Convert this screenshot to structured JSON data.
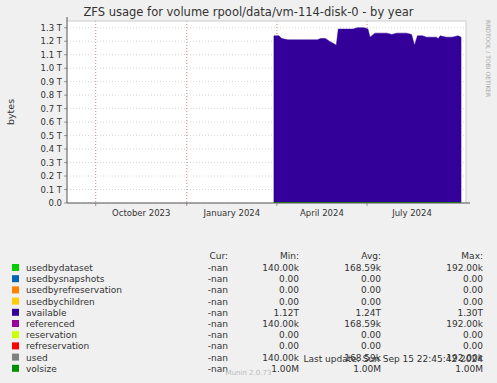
{
  "chart_data": {
    "type": "area",
    "title": "ZFS usage for volume rpool/data/vm-114-disk-0 - by year",
    "ylabel": "bytes",
    "watermark": "RRDTOOL / TOBI OETIKER",
    "footer": "Munin 2.0.73",
    "last_update": "Last update: Sun Sep 15 22:45:42 2024",
    "grid": true,
    "xlim": [
      19602,
      20005
    ],
    "ylim": [
      0,
      1350000000000
    ],
    "xticks": [
      {
        "value": 19631,
        "label": "October 2023"
      },
      {
        "value": 19723,
        "label": "January 2024"
      },
      {
        "value": 19814,
        "label": "April 2024"
      },
      {
        "value": 19905,
        "label": "July 2024"
      }
    ],
    "yticks": [
      {
        "value": 0,
        "label": "0.0"
      },
      {
        "value": 100000000000,
        "label": "0.1 T"
      },
      {
        "value": 200000000000,
        "label": "0.2 T"
      },
      {
        "value": 300000000000,
        "label": "0.3 T"
      },
      {
        "value": 400000000000,
        "label": "0.4 T"
      },
      {
        "value": 500000000000,
        "label": "0.5 T"
      },
      {
        "value": 600000000000,
        "label": "0.6 T"
      },
      {
        "value": 700000000000,
        "label": "0.7 T"
      },
      {
        "value": 800000000000,
        "label": "0.8 T"
      },
      {
        "value": 900000000000,
        "label": "0.9 T"
      },
      {
        "value": 1000000000000,
        "label": "1.0 T"
      },
      {
        "value": 1100000000000,
        "label": "1.1 T"
      },
      {
        "value": 1200000000000,
        "label": "1.2 T"
      },
      {
        "value": 1300000000000,
        "label": "1.3 T"
      }
    ],
    "x": [
      19811,
      19816,
      19819,
      19825,
      19835,
      19845,
      19855,
      19858,
      19863,
      19867,
      19872,
      19874,
      19876,
      19885,
      19891,
      19895,
      19902,
      19906,
      19908,
      19913,
      19925,
      19930,
      19935,
      19945,
      19950,
      19953,
      19956,
      19961,
      19965,
      19975,
      19977,
      19979,
      19985,
      19991,
      19997,
      20000
    ],
    "series": [
      {
        "name": "available",
        "color": "#330099",
        "type": "area",
        "values": [
          1240000000000,
          1240000000000,
          1220000000000,
          1210000000000,
          1210000000000,
          1210000000000,
          1210000000000,
          1220000000000,
          1220000000000,
          1200000000000,
          1180000000000,
          1170000000000,
          1290000000000,
          1290000000000,
          1290000000000,
          1300000000000,
          1300000000000,
          1290000000000,
          1230000000000,
          1260000000000,
          1260000000000,
          1250000000000,
          1260000000000,
          1260000000000,
          1250000000000,
          1170000000000,
          1240000000000,
          1240000000000,
          1230000000000,
          1230000000000,
          1220000000000,
          1240000000000,
          1230000000000,
          1230000000000,
          1240000000000,
          1230000000000
        ]
      },
      {
        "name": "volsize",
        "color": "#008F00",
        "type": "line",
        "values": [
          1000000,
          1000000,
          1000000,
          1000000,
          1000000,
          1000000,
          1000000,
          1000000,
          1000000,
          1000000,
          1000000,
          1000000,
          1000000,
          1000000,
          1000000,
          1000000,
          1000000,
          1000000,
          1000000,
          1000000,
          1000000,
          1000000,
          1000000,
          1000000,
          1000000,
          1000000,
          1000000,
          1000000,
          1000000,
          1000000,
          1000000,
          1000000,
          1000000,
          1000000,
          1000000,
          1000000
        ]
      }
    ],
    "legend_table": {
      "header": [
        "Cur:",
        "Min:",
        "Avg:",
        "Max:"
      ],
      "rows": [
        {
          "name": "usedbydataset",
          "color": "#00CC00",
          "cur": "-nan",
          "min": "140.00k",
          "avg": "168.59k",
          "max": "192.00k"
        },
        {
          "name": "usedbysnapshots",
          "color": "#0066B3",
          "cur": "-nan",
          "min": "0.00",
          "avg": "0.00",
          "max": "0.00"
        },
        {
          "name": "usedbyrefreservation",
          "color": "#FF8000",
          "cur": "-nan",
          "min": "0.00",
          "avg": "0.00",
          "max": "0.00"
        },
        {
          "name": "usedbychildren",
          "color": "#FFCC00",
          "cur": "-nan",
          "min": "0.00",
          "avg": "0.00",
          "max": "0.00"
        },
        {
          "series": 0,
          "cur": "-nan",
          "min": "1.12T",
          "avg": "1.24T",
          "max": "1.30T"
        },
        {
          "name": "referenced",
          "color": "#990099",
          "cur": "-nan",
          "min": "140.00k",
          "avg": "168.59k",
          "max": "192.00k"
        },
        {
          "name": "reservation",
          "color": "#CCFF00",
          "cur": "-nan",
          "min": "0.00",
          "avg": "0.00",
          "max": "0.00"
        },
        {
          "name": "refreservation",
          "color": "#FF0000",
          "cur": "-nan",
          "min": "0.00",
          "avg": "0.00",
          "max": "0.00"
        },
        {
          "name": "used",
          "color": "#808080",
          "cur": "-nan",
          "min": "140.00k",
          "avg": "168.59k",
          "max": "192.00k"
        },
        {
          "series": 1,
          "cur": "-nan",
          "min": "1.00M",
          "avg": "1.00M",
          "max": "1.00M"
        }
      ]
    }
  }
}
